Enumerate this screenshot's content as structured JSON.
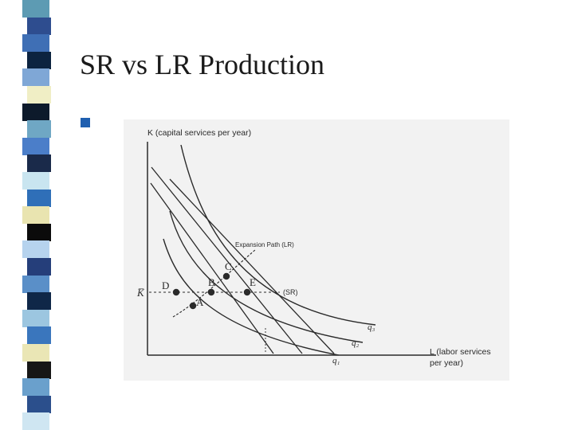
{
  "slide": {
    "title": "SR vs LR Production"
  },
  "stripe_colors": [
    "#5d9bb3",
    "#2e4d8f",
    "#3f6fb5",
    "#0c2340",
    "#7fa7d6",
    "#f0eec5",
    "#0d1a2b",
    "#6fa7c4",
    "#4b7ec9",
    "#1a2a4a",
    "#c9e5f0",
    "#2f6fb8",
    "#e9e4b0",
    "#0b0b0b",
    "#b6d3ee",
    "#253e7a",
    "#5a8fc8",
    "#0f2748",
    "#9cc6e0",
    "#3a76bd",
    "#eae6b5",
    "#161616",
    "#6aa0cc",
    "#2b4f8c",
    "#cfe6f2"
  ],
  "diagram": {
    "y_axis_label": "K (capital services per year)",
    "x_axis_label_line1": "L (labor services",
    "x_axis_label_line2": "per year)",
    "kbar_label": "K̅",
    "expansion_path_label": "Expansion Path  (LR)",
    "sr_label": "(SR)",
    "points": {
      "A": "A",
      "B": "B",
      "C": "C",
      "D": "D",
      "E": "E"
    },
    "isoquant_labels": [
      "q₃",
      "q₂",
      "q₁"
    ]
  },
  "colors": {
    "accent": "#1f5fb0",
    "ink": "#2a2a2a",
    "figure_bg": "#f2f2f2"
  }
}
